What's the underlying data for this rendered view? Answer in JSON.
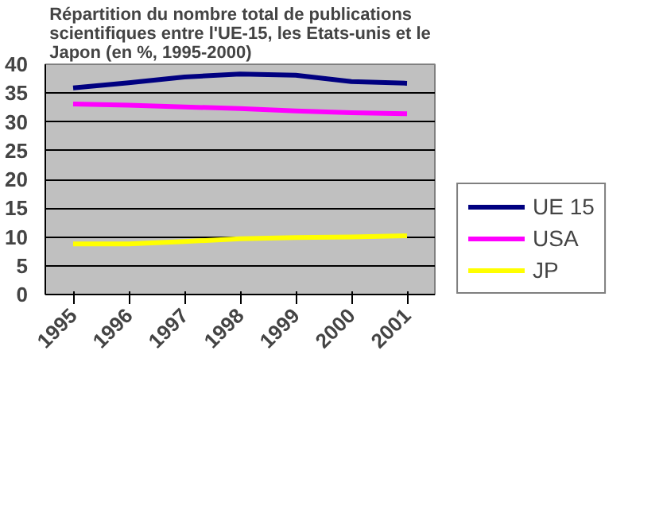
{
  "chart_data": {
    "type": "line",
    "title": "Répartition du nombre total de publications scientifiques entre l'UE-15, les Etats-unis et le Japon (en %, 1995-2000)",
    "categories": [
      "1995",
      "1996",
      "1997",
      "1998",
      "1999",
      "2000",
      "2001"
    ],
    "series": [
      {
        "name": "UE 15",
        "color": "#000080",
        "values": [
          35.9,
          36.8,
          37.8,
          38.3,
          38.1,
          37.0,
          36.7
        ]
      },
      {
        "name": "USA",
        "color": "#ff00ff",
        "values": [
          33.1,
          32.9,
          32.6,
          32.3,
          31.9,
          31.6,
          31.4
        ]
      },
      {
        "name": "JP",
        "color": "#ffff00",
        "values": [
          8.8,
          8.8,
          9.2,
          9.7,
          9.9,
          10.0,
          10.2
        ]
      }
    ],
    "ylim": [
      0,
      40
    ],
    "yticks": [
      0,
      5,
      10,
      15,
      20,
      25,
      30,
      35,
      40
    ],
    "grid": "y",
    "legend": "right",
    "marker": "none",
    "line_style": "solid"
  }
}
